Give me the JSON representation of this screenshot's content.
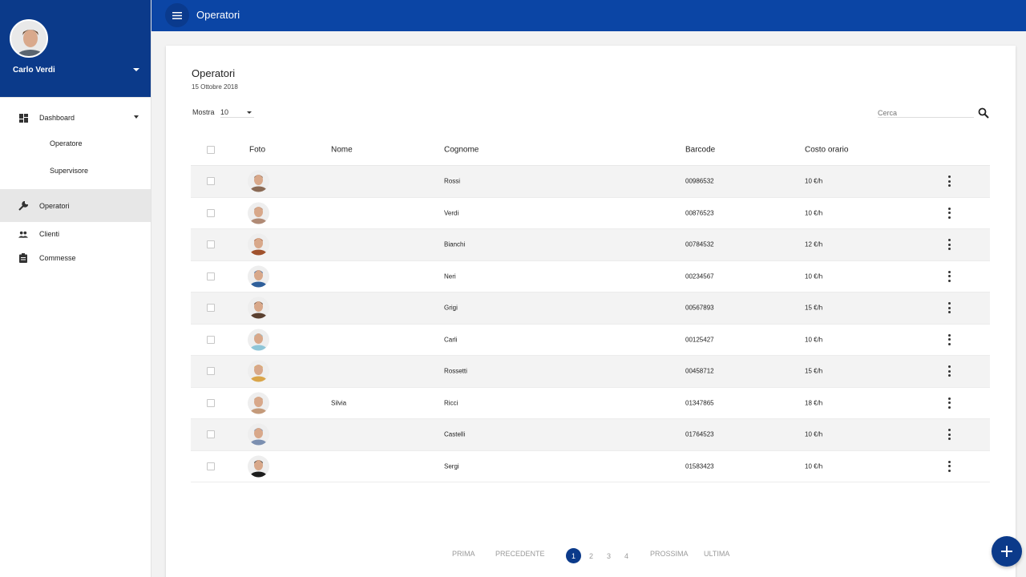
{
  "topbar": {
    "title": "Operatori"
  },
  "sidebar": {
    "user_name": "Carlo Verdi",
    "items": [
      {
        "label": "Dashboard",
        "icon": "dashboard-icon"
      },
      {
        "label": "Operatore"
      },
      {
        "label": "Supervisore"
      },
      {
        "label": "Operatori",
        "icon": "wrench-icon"
      },
      {
        "label": "Clienti",
        "icon": "people-icon"
      },
      {
        "label": "Commesse",
        "icon": "clipboard-icon"
      }
    ]
  },
  "page": {
    "title": "Operatori",
    "date": "15 Ottobre 2018",
    "show_label": "Mostra",
    "show_value": "10",
    "search_placeholder": "Cerca"
  },
  "table": {
    "headers": [
      "Foto",
      "Nome",
      "Cognome",
      "Barcode",
      "Costo orario"
    ],
    "rows": [
      {
        "nome": "",
        "cognome": "Rossi",
        "barcode": "00986532",
        "costo": "10 €/h",
        "avatar_color": "#8a6a55"
      },
      {
        "nome": "",
        "cognome": "Verdi",
        "barcode": "00876523",
        "costo": "10 €/h",
        "avatar_color": "#b08a75"
      },
      {
        "nome": "",
        "cognome": "Bianchi",
        "barcode": "00784532",
        "costo": "12 €/h",
        "avatar_color": "#a0522d"
      },
      {
        "nome": "",
        "cognome": "Neri",
        "barcode": "00234567",
        "costo": "10 €/h",
        "avatar_color": "#2f5f9a"
      },
      {
        "nome": "",
        "cognome": "Grigi",
        "barcode": "00567893",
        "costo": "15 €/h",
        "avatar_color": "#5a4030"
      },
      {
        "nome": "",
        "cognome": "Carli",
        "barcode": "00125427",
        "costo": "10 €/h",
        "avatar_color": "#8fc6d8"
      },
      {
        "nome": "",
        "cognome": "Rossetti",
        "barcode": "00458712",
        "costo": "15 €/h",
        "avatar_color": "#d9a54a"
      },
      {
        "nome": "Silvia",
        "cognome": "Ricci",
        "barcode": "01347865",
        "costo": "18 €/h",
        "avatar_color": "#c49a7a"
      },
      {
        "nome": "",
        "cognome": "Castelli",
        "barcode": "01764523",
        "costo": "10 €/h",
        "avatar_color": "#7b8fb0"
      },
      {
        "nome": "",
        "cognome": "Sergi",
        "barcode": "01583423",
        "costo": "10 €/h",
        "avatar_color": "#1c1c1c"
      }
    ]
  },
  "pager": {
    "first": "PRIMA",
    "prev": "PRECEDENTE",
    "pages": [
      "1",
      "2",
      "3",
      "4"
    ],
    "current": "1",
    "next": "PROSSIMA",
    "last": "ULTIMA"
  },
  "fab": {
    "label": "+"
  },
  "colors": {
    "primary": "#0b45a5",
    "primary_dark": "#0b3a8a"
  }
}
